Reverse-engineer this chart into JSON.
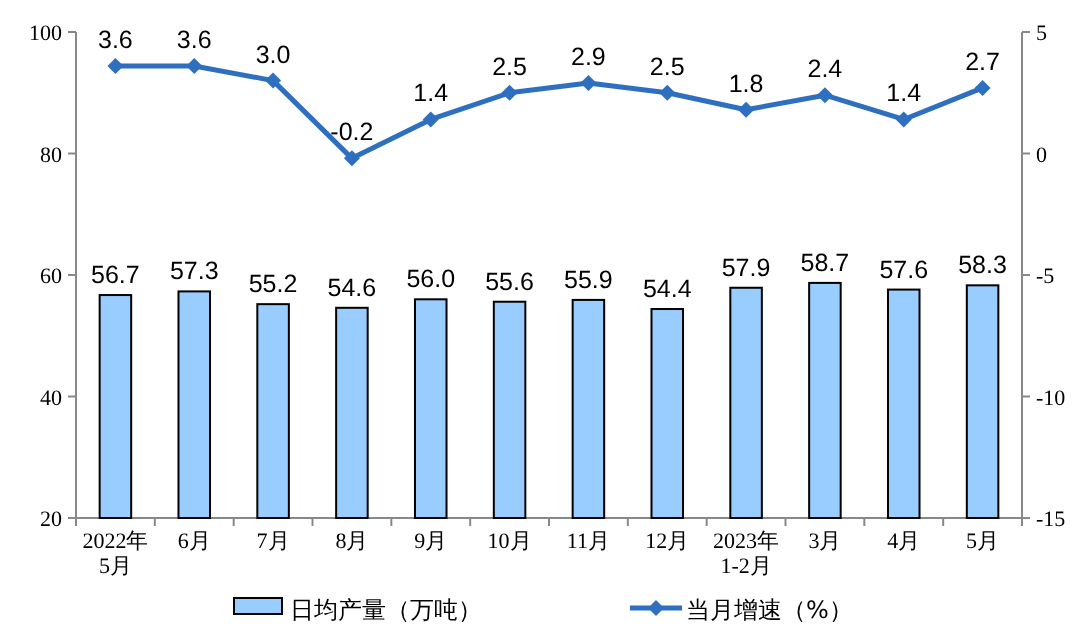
{
  "chart_data": {
    "type": "bar",
    "categories": [
      "2022年\n5月",
      "6月",
      "7月",
      "8月",
      "9月",
      "10月",
      "11月",
      "12月",
      "2023年\n1-2月",
      "3月",
      "4月",
      "5月"
    ],
    "series": [
      {
        "name": "日均产量（万吨）",
        "color": "#99ccff",
        "values": [
          56.7,
          57.3,
          55.2,
          54.6,
          56.0,
          55.6,
          55.9,
          54.4,
          57.9,
          58.7,
          57.6,
          58.3
        ],
        "value_labels": [
          "56.7",
          "57.3",
          "55.2",
          "54.6",
          "56.0",
          "55.6",
          "55.9",
          "54.4",
          "57.9",
          "58.7",
          "57.6",
          "58.3"
        ]
      },
      {
        "name": "当月增速（%）",
        "type": "line",
        "axis": "y2",
        "color": "#2e6fbf",
        "values": [
          3.6,
          3.6,
          3.0,
          -0.2,
          1.4,
          2.5,
          2.9,
          2.5,
          1.8,
          2.4,
          1.4,
          2.7
        ],
        "value_labels": [
          "3.6",
          "3.6",
          "3.0",
          "-0.2",
          "1.4",
          "2.5",
          "2.9",
          "2.5",
          "1.8",
          "2.4",
          "1.4",
          "2.7"
        ]
      }
    ],
    "ylim": [
      20,
      100
    ],
    "yticks": [
      20,
      40,
      60,
      80,
      100
    ],
    "y2lim": [
      -15,
      5
    ],
    "y2ticks": [
      -15,
      -10,
      -5,
      0,
      5
    ],
    "marker": "diamond",
    "legend": "bottom",
    "grid": false
  }
}
